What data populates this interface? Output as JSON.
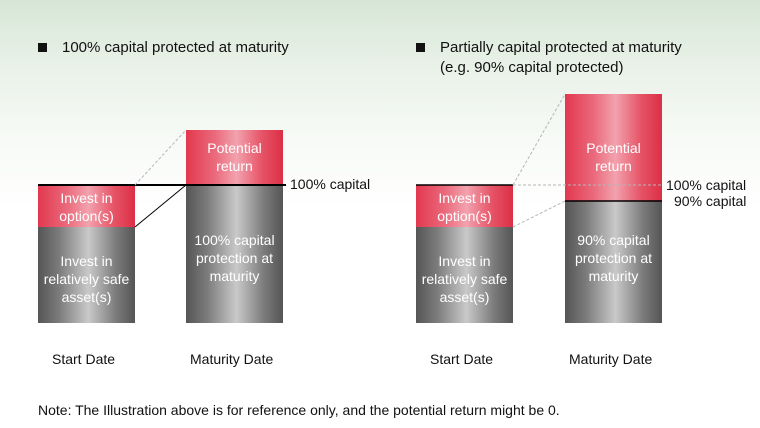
{
  "left_panel": {
    "heading": "100% capital protected at maturity",
    "start_bar": {
      "top_label": "Invest in option(s)",
      "bottom_label": "Invest in relatively safe asset(s)"
    },
    "maturity_bar": {
      "top_label": "Potential return",
      "bottom_label": "100% capital protection at maturity"
    },
    "capital_label": "100% capital",
    "start_axis_label": "Start Date",
    "maturity_axis_label": "Maturity Date"
  },
  "right_panel": {
    "heading_line1": "Partially capital protected at maturity",
    "heading_line2": "(e.g. 90% capital protected)",
    "start_bar": {
      "top_label": "Invest in option(s)",
      "bottom_label": "Invest in relatively safe asset(s)"
    },
    "maturity_bar": {
      "top_label": "Potential return",
      "bottom_label": "90% capital protection at maturity"
    },
    "capital_label_100": "100% capital",
    "capital_label_90": "90% capital",
    "start_axis_label": "Start Date",
    "maturity_axis_label": "Maturity Date"
  },
  "note": "Note: The Illustration above is for reference only, and the potential return might be 0.",
  "colors": {
    "red": "#e2384f",
    "grey": "#7c7c7c",
    "background_top": "#d6e6d5"
  }
}
